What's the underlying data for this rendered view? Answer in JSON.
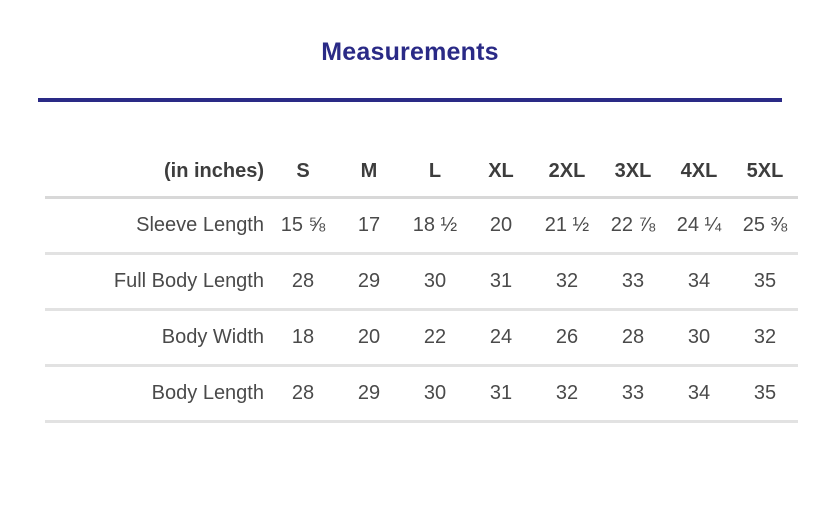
{
  "page": {
    "title": "Measurements",
    "accent_color": "#2a2a86",
    "header_text_color": "#3d3d3d",
    "body_text_color": "#4a4a4a",
    "divider_color": "#e2e2e2"
  },
  "chart_data": {
    "type": "table",
    "title": "Measurements",
    "unit_label": "(in inches)",
    "columns": [
      "S",
      "M",
      "L",
      "XL",
      "2XL",
      "3XL",
      "4XL",
      "5XL"
    ],
    "rows": [
      {
        "label": "Sleeve Length",
        "values": [
          "15 ⅝",
          "17",
          "18 ½",
          "20",
          "21 ½",
          "22 ⅞",
          "24 ¼",
          "25 ⅜"
        ]
      },
      {
        "label": "Full Body Length",
        "values": [
          "28",
          "29",
          "30",
          "31",
          "32",
          "33",
          "34",
          "35"
        ]
      },
      {
        "label": "Body Width",
        "values": [
          "18",
          "20",
          "22",
          "24",
          "26",
          "28",
          "30",
          "32"
        ]
      },
      {
        "label": "Body Length",
        "values": [
          "28",
          "29",
          "30",
          "31",
          "32",
          "33",
          "34",
          "35"
        ]
      }
    ]
  }
}
